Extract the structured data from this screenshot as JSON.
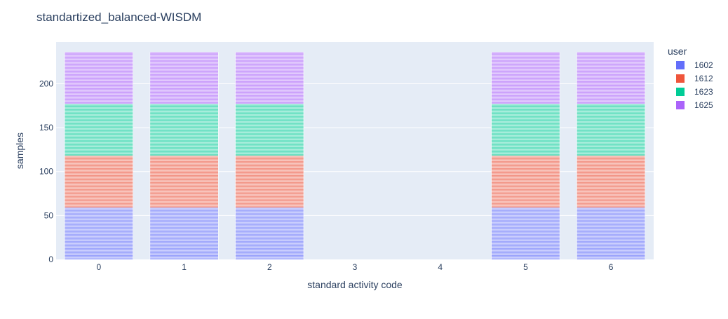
{
  "chart_data": {
    "type": "bar",
    "barmode": "stack",
    "title": "standartized_balanced-WISDM",
    "xlabel": "standard activity code",
    "ylabel": "samples",
    "categories": [
      "0",
      "1",
      "2",
      "3",
      "4",
      "5",
      "6"
    ],
    "ylim": [
      0,
      247.5
    ],
    "yticks": [
      0,
      50,
      100,
      150,
      200
    ],
    "grid": true,
    "legend": {
      "title": "user",
      "placement": "right"
    },
    "samples_per_segment": 1,
    "series": [
      {
        "name": "1602",
        "color": "#636efa",
        "values": [
          59,
          59,
          59,
          0,
          0,
          59,
          59
        ]
      },
      {
        "name": "1612",
        "color": "#ef553b",
        "values": [
          59,
          59,
          59,
          0,
          0,
          59,
          59
        ]
      },
      {
        "name": "1623",
        "color": "#00cc96",
        "values": [
          59,
          59,
          59,
          0,
          0,
          59,
          59
        ]
      },
      {
        "name": "1625",
        "color": "#ab63fa",
        "values": [
          59,
          59,
          59,
          0,
          0,
          59,
          59
        ]
      }
    ]
  },
  "colors": {
    "plot_background": "#e5ecf6",
    "gridline": "#ffffff",
    "text": "#2a3f5f",
    "bar_outline": "#ffffff"
  }
}
